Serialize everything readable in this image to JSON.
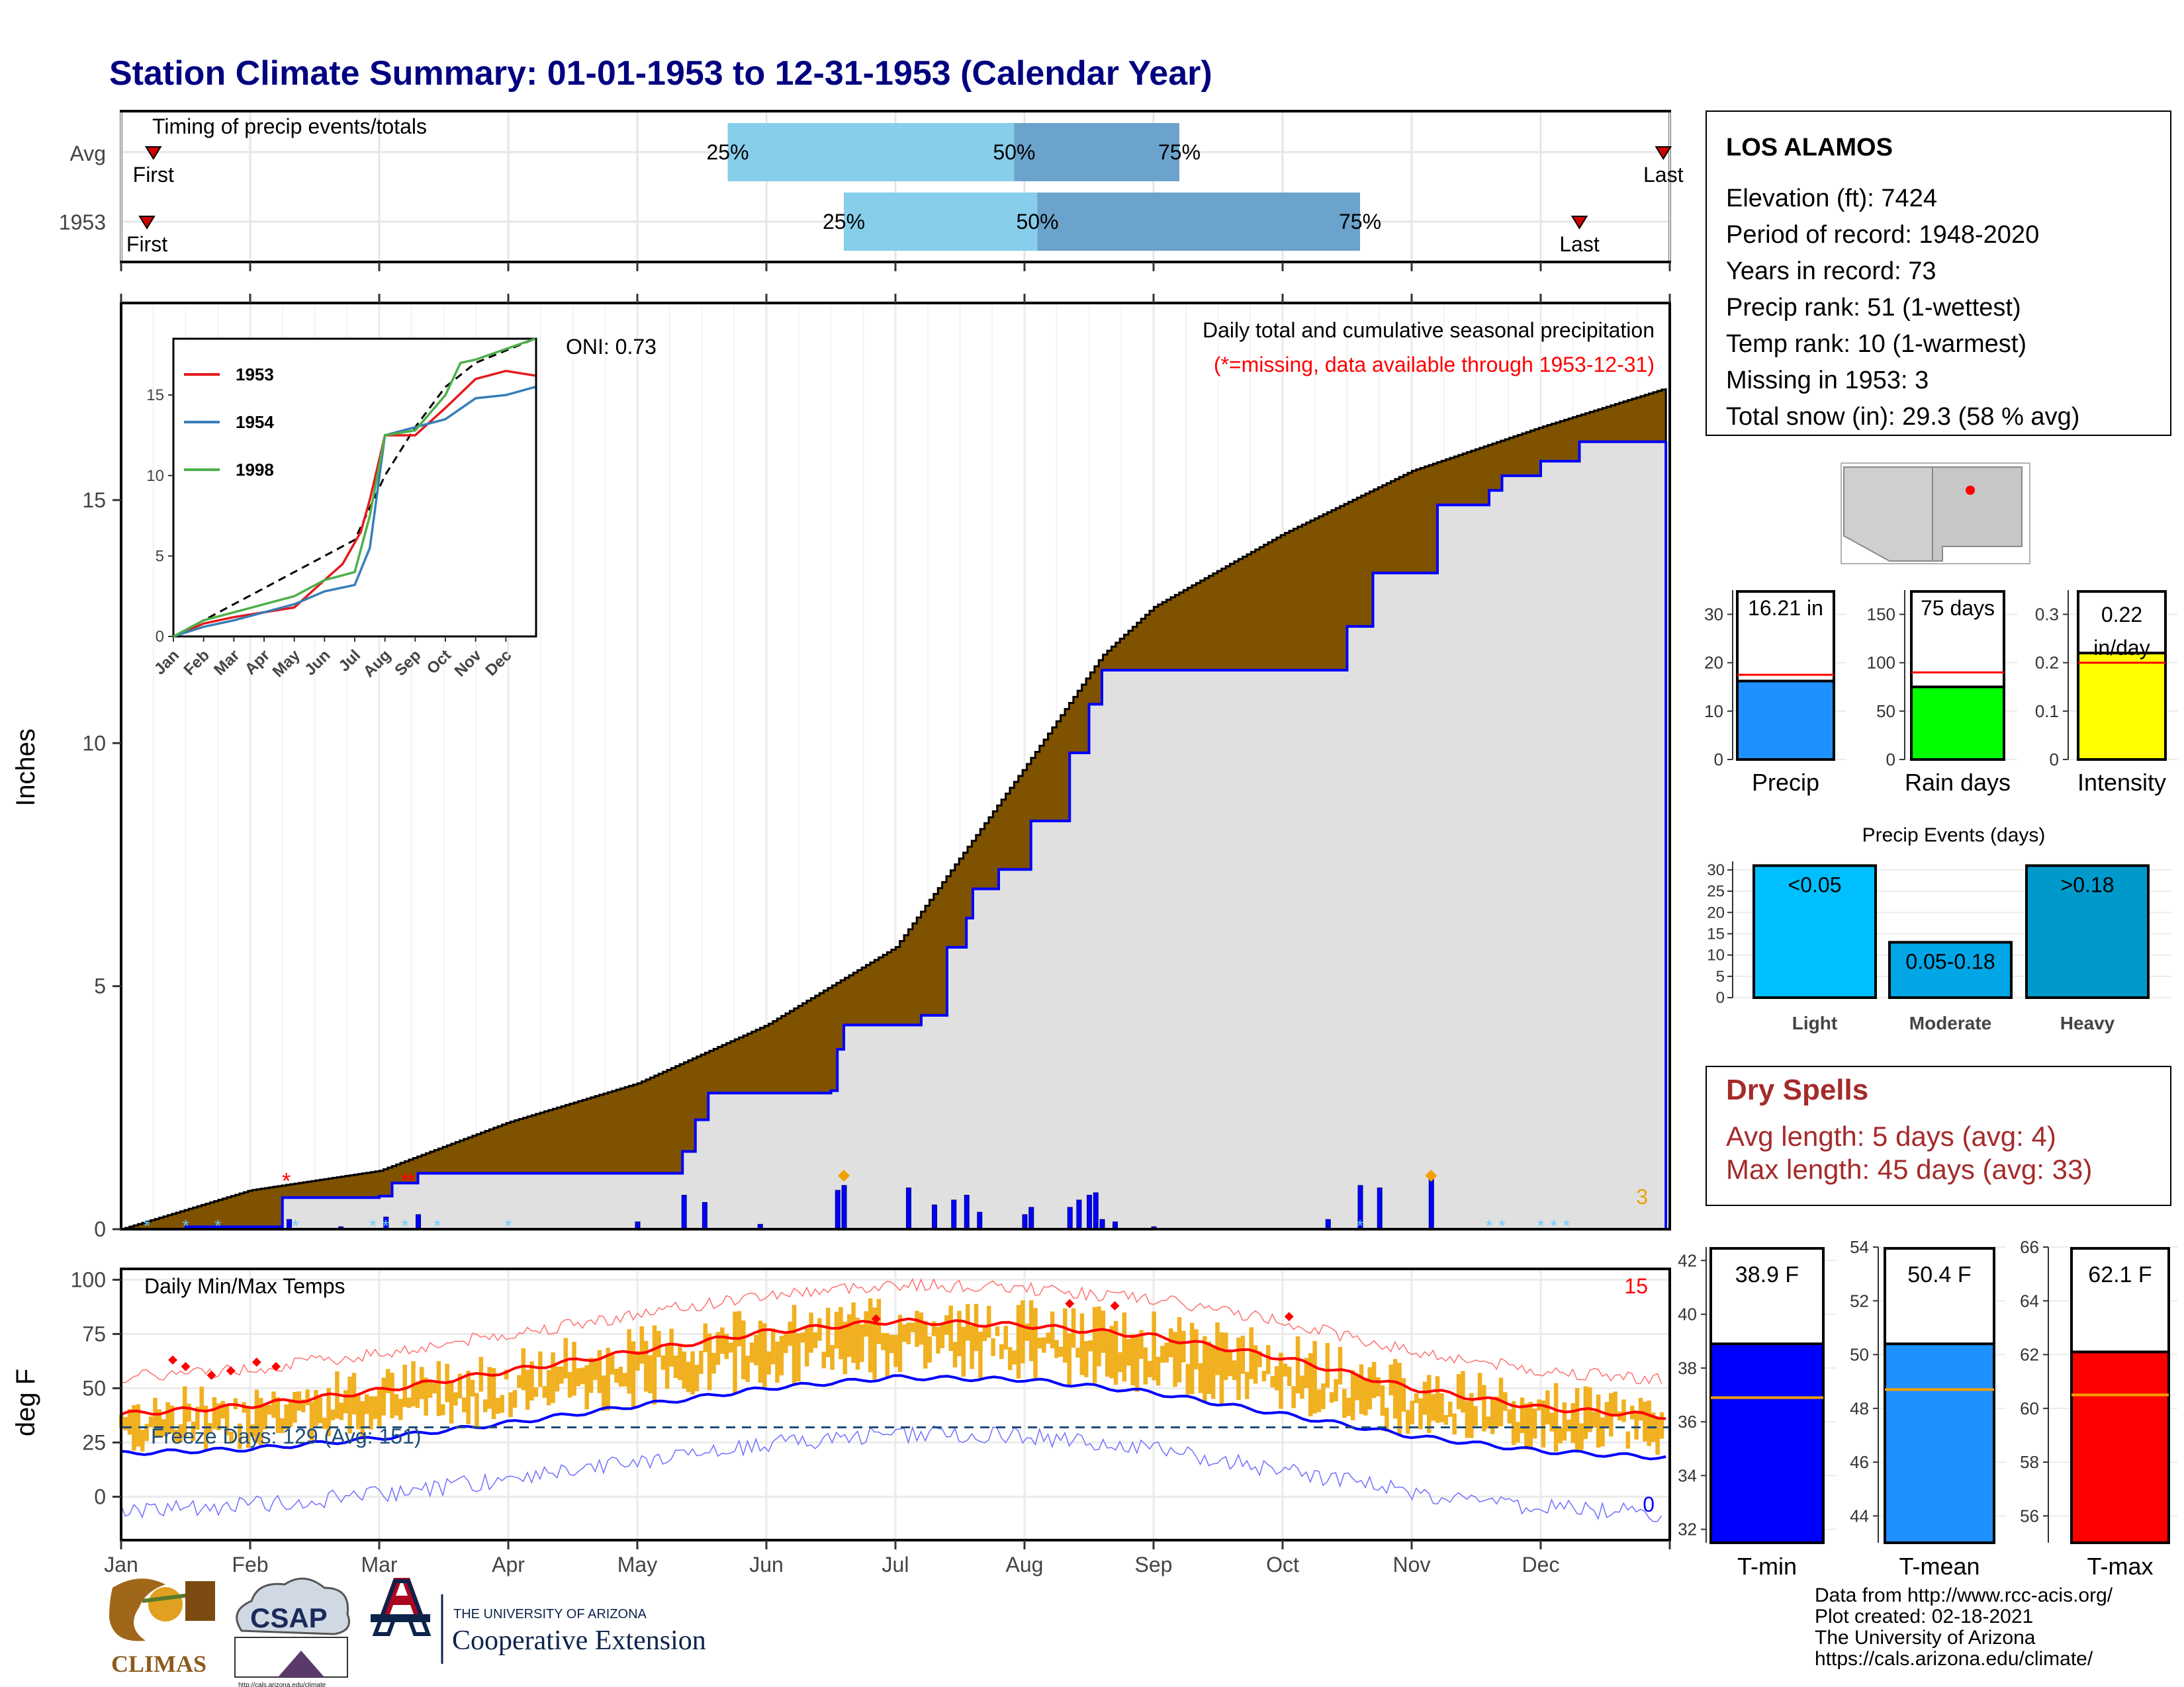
{
  "title": "Station Climate Summary: 01-01-1953 to 12-31-1953 (Calendar Year)",
  "timing": {
    "label": "Timing of precip events/totals",
    "rows": [
      {
        "name": "Avg",
        "p25_month": 5.7,
        "p50_month": 7.92,
        "p75_month": 9.2,
        "first_label": "First",
        "last_label": "Last",
        "first_month": 1.25,
        "last_month": 12.95
      },
      {
        "name": "1953",
        "p25_month": 6.6,
        "p50_month": 8.1,
        "p75_month": 10.6,
        "first_label": "First",
        "last_label": "Last",
        "first_month": 1.2,
        "last_month": 12.3
      }
    ],
    "pct_labels": [
      "25%",
      "50%",
      "75%"
    ],
    "colors": {
      "light": "#87ceeb",
      "dark": "#6ba3cc"
    }
  },
  "station": {
    "name": "LOS ALAMOS",
    "lines": [
      "Elevation (ft): 7424",
      "Period of record: 1948-2020",
      "Years in record: 73",
      "Precip rank: 51 (1-wettest)",
      "Temp rank: 10 (1-warmest)",
      "Missing in 1953: 3",
      "Total snow (in): 29.3 (58 % avg)"
    ]
  },
  "precip_panel": {
    "ylabel": "Inches",
    "yticks": [
      0,
      5,
      10,
      15
    ],
    "ylim": [
      0,
      19
    ],
    "title": "Daily total and cumulative seasonal precipitation",
    "missing_note": "(*=missing, data available through 1953-12-31)",
    "oni": "ONI: 0.73",
    "missing_count": "3",
    "avg_cumulative_total": 17.3,
    "cumulative_1953": [
      {
        "m": 1.0,
        "v": 0
      },
      {
        "m": 1.5,
        "v": 0.05
      },
      {
        "m": 2.0,
        "v": 0.05
      },
      {
        "m": 2.25,
        "v": 0.65
      },
      {
        "m": 3.0,
        "v": 0.68
      },
      {
        "m": 3.1,
        "v": 0.95
      },
      {
        "m": 3.3,
        "v": 1.15
      },
      {
        "m": 5.35,
        "v": 1.6
      },
      {
        "m": 5.45,
        "v": 2.25
      },
      {
        "m": 5.55,
        "v": 2.8
      },
      {
        "m": 6.5,
        "v": 2.85
      },
      {
        "m": 6.55,
        "v": 3.7
      },
      {
        "m": 6.6,
        "v": 4.2
      },
      {
        "m": 7.2,
        "v": 4.4
      },
      {
        "m": 7.4,
        "v": 5.8
      },
      {
        "m": 7.55,
        "v": 6.4
      },
      {
        "m": 7.6,
        "v": 7.0
      },
      {
        "m": 7.8,
        "v": 7.4
      },
      {
        "m": 8.05,
        "v": 8.4
      },
      {
        "m": 8.35,
        "v": 9.8
      },
      {
        "m": 8.5,
        "v": 10.8
      },
      {
        "m": 8.6,
        "v": 11.5
      },
      {
        "m": 9.8,
        "v": 11.5
      },
      {
        "m": 10.4,
        "v": 11.5
      },
      {
        "m": 10.5,
        "v": 12.4
      },
      {
        "m": 10.7,
        "v": 13.5
      },
      {
        "m": 11.1,
        "v": 13.5
      },
      {
        "m": 11.2,
        "v": 14.9
      },
      {
        "m": 11.6,
        "v": 15.2
      },
      {
        "m": 11.7,
        "v": 15.5
      },
      {
        "m": 12.0,
        "v": 15.8
      },
      {
        "m": 12.3,
        "v": 16.2
      },
      {
        "m": 12.97,
        "v": 16.21
      }
    ],
    "daily_bars": [
      {
        "m": 2.3,
        "v": 0.2
      },
      {
        "m": 2.7,
        "v": 0.05
      },
      {
        "m": 3.05,
        "v": 0.25
      },
      {
        "m": 3.3,
        "v": 0.3
      },
      {
        "m": 5.0,
        "v": 0.15
      },
      {
        "m": 5.36,
        "v": 0.7
      },
      {
        "m": 5.52,
        "v": 0.55
      },
      {
        "m": 5.95,
        "v": 0.1
      },
      {
        "m": 6.55,
        "v": 0.8
      },
      {
        "m": 6.6,
        "v": 0.9
      },
      {
        "m": 7.1,
        "v": 0.85
      },
      {
        "m": 7.3,
        "v": 0.5
      },
      {
        "m": 7.45,
        "v": 0.6
      },
      {
        "m": 7.55,
        "v": 0.7
      },
      {
        "m": 7.65,
        "v": 0.35
      },
      {
        "m": 8.0,
        "v": 0.3
      },
      {
        "m": 8.05,
        "v": 0.45
      },
      {
        "m": 8.35,
        "v": 0.45
      },
      {
        "m": 8.42,
        "v": 0.6
      },
      {
        "m": 8.5,
        "v": 0.7
      },
      {
        "m": 8.55,
        "v": 0.75
      },
      {
        "m": 8.6,
        "v": 0.2
      },
      {
        "m": 8.7,
        "v": 0.15
      },
      {
        "m": 9.0,
        "v": 0.05
      },
      {
        "m": 10.35,
        "v": 0.2
      },
      {
        "m": 10.6,
        "v": 0.9
      },
      {
        "m": 10.75,
        "v": 0.85
      },
      {
        "m": 11.15,
        "v": 1.1
      }
    ],
    "inset": {
      "yticks": [
        0,
        5,
        10,
        15
      ],
      "months": [
        "Jan",
        "Feb",
        "Mar",
        "Apr",
        "May",
        "Jun",
        "Jul",
        "Aug",
        "Sep",
        "Oct",
        "Nov",
        "Dec"
      ],
      "series": [
        {
          "name": "1953",
          "color": "#e41a1c",
          "points": [
            [
              1,
              0
            ],
            [
              2,
              0.8
            ],
            [
              3,
              1.2
            ],
            [
              4,
              1.5
            ],
            [
              5,
              1.8
            ],
            [
              6,
              3.5
            ],
            [
              6.6,
              4.5
            ],
            [
              7.2,
              6.5
            ],
            [
              7.5,
              8.5
            ],
            [
              8,
              12.5
            ],
            [
              9,
              12.5
            ],
            [
              10,
              14.2
            ],
            [
              11,
              16
            ],
            [
              12,
              16.5
            ],
            [
              12.97,
              16.21
            ]
          ]
        },
        {
          "name": "1954",
          "color": "#377eb8",
          "points": [
            [
              1,
              0
            ],
            [
              2,
              0.6
            ],
            [
              3,
              1
            ],
            [
              4,
              1.5
            ],
            [
              5,
              2
            ],
            [
              6,
              2.8
            ],
            [
              7,
              3.2
            ],
            [
              7.5,
              5.5
            ],
            [
              8,
              12.5
            ],
            [
              9,
              13
            ],
            [
              10,
              13.5
            ],
            [
              11,
              14.8
            ],
            [
              12,
              15
            ],
            [
              12.97,
              15.5
            ]
          ]
        },
        {
          "name": "1998",
          "color": "#4daf4a",
          "points": [
            [
              1,
              0
            ],
            [
              2,
              1
            ],
            [
              3,
              1.5
            ],
            [
              4,
              2
            ],
            [
              5,
              2.5
            ],
            [
              6,
              3.5
            ],
            [
              7,
              4
            ],
            [
              7.5,
              7.5
            ],
            [
              8,
              12.5
            ],
            [
              9,
              12.8
            ],
            [
              10,
              15
            ],
            [
              10.5,
              17
            ],
            [
              11,
              17.2
            ],
            [
              12.97,
              18.5
            ]
          ]
        }
      ],
      "avg": [
        [
          1,
          0
        ],
        [
          3,
          2
        ],
        [
          5,
          4
        ],
        [
          7,
          6
        ],
        [
          8,
          10
        ],
        [
          9,
          13
        ],
        [
          10,
          15.5
        ],
        [
          11,
          17
        ],
        [
          12.97,
          18.5
        ]
      ],
      "ylim": [
        0,
        18.5
      ]
    }
  },
  "summary_bars": [
    {
      "label": "Precip",
      "value_text": "16.21 in",
      "value": 16.21,
      "avg": 17.5,
      "ymax": 35,
      "yticks": [
        0,
        10,
        20,
        30
      ],
      "color": "#1e90ff"
    },
    {
      "label": "Rain days",
      "value_text": "75 days",
      "value": 75,
      "avg": 90,
      "ymax": 175,
      "yticks": [
        0,
        50,
        100,
        150
      ],
      "color": "#00ff00"
    },
    {
      "label": "Intensity",
      "value_text": "0.22 in/day",
      "value": 0.22,
      "avg": 0.2,
      "ymax": 0.35,
      "yticks": [
        0.0,
        0.1,
        0.2,
        0.3
      ],
      "color": "#ffff00"
    }
  ],
  "events": {
    "title": "Precip Events (days)",
    "yticks": [
      0,
      5,
      10,
      15,
      20,
      25,
      30
    ],
    "ymax": 32,
    "bars": [
      {
        "label": "Light",
        "tag": "<0.05",
        "value": 31,
        "color": "#00bfff"
      },
      {
        "label": "Moderate",
        "tag": "0.05-0.18",
        "value": 13,
        "color": "#00a6e6"
      },
      {
        "label": "Heavy",
        "tag": ">0.18",
        "value": 31,
        "color": "#0099cc"
      }
    ]
  },
  "dry_spells": {
    "title": "Dry Spells",
    "lines": [
      "Avg length: 5 days (avg: 4)",
      "Max length: 45 days (avg: 33)"
    ]
  },
  "temp_panel": {
    "ylabel": "deg F",
    "label": "Daily Min/Max Temps",
    "yticks": [
      0,
      25,
      50,
      75,
      100
    ],
    "ylim": [
      -20,
      105
    ],
    "freeze_text": "Freeze Days: 129 (Avg: 151)",
    "max_count": "15",
    "min_count": "0",
    "freeze_line": 32,
    "months": [
      "Jan",
      "Feb",
      "Mar",
      "Apr",
      "May",
      "Jun",
      "Jul",
      "Aug",
      "Sep",
      "Oct",
      "Nov",
      "Dec"
    ],
    "avg_max_curve": [
      [
        1,
        38
      ],
      [
        2,
        42
      ],
      [
        3,
        49
      ],
      [
        4,
        58
      ],
      [
        5,
        67
      ],
      [
        6,
        76
      ],
      [
        7,
        81
      ],
      [
        8,
        79
      ],
      [
        9,
        74
      ],
      [
        10,
        64
      ],
      [
        11,
        50
      ],
      [
        12,
        41
      ],
      [
        12.97,
        37
      ]
    ],
    "avg_min_curve": [
      [
        1,
        20
      ],
      [
        2,
        22
      ],
      [
        3,
        27
      ],
      [
        4,
        34
      ],
      [
        5,
        42
      ],
      [
        6,
        50
      ],
      [
        7,
        55
      ],
      [
        8,
        54
      ],
      [
        9,
        48
      ],
      [
        10,
        38
      ],
      [
        11,
        28
      ],
      [
        12,
        21
      ],
      [
        12.97,
        18
      ]
    ]
  },
  "temp_bars": [
    {
      "label": "T-min",
      "value_text": "38.9 F",
      "value": 38.9,
      "avg": 36.9,
      "ymin": 31.5,
      "ymax": 42.5,
      "yticks": [
        32,
        34,
        36,
        38,
        40,
        42
      ],
      "color": "#0000ff"
    },
    {
      "label": "T-mean",
      "value_text": "50.4 F",
      "value": 50.4,
      "avg": 48.7,
      "ymin": 43,
      "ymax": 54,
      "yticks": [
        44,
        46,
        48,
        50,
        52,
        54
      ],
      "color": "#1e90ff"
    },
    {
      "label": "T-max",
      "value_text": "62.1 F",
      "value": 62.1,
      "avg": 60.5,
      "ymin": 55,
      "ymax": 66,
      "yticks": [
        56,
        58,
        60,
        62,
        64,
        66
      ],
      "color": "#ff0000"
    }
  ],
  "footer": {
    "credits": [
      "Data from http://www.rcc-acis.org/",
      "Plot created: 02-18-2021",
      "The University of Arizona",
      "https://cals.arizona.edu/climate/"
    ],
    "logo_climas": "CLIMAS",
    "logo_csap": "CSAP",
    "csap_url": "http://cals.arizona.edu/climate",
    "ua_top": "THE UNIVERSITY OF ARIZONA",
    "ua_bottom": "Cooperative Extension"
  },
  "colors": {
    "brown": "#7f5200",
    "fill_grey": "#e0e0e0",
    "blue": "#0000ff",
    "orange": "#f0b020"
  }
}
